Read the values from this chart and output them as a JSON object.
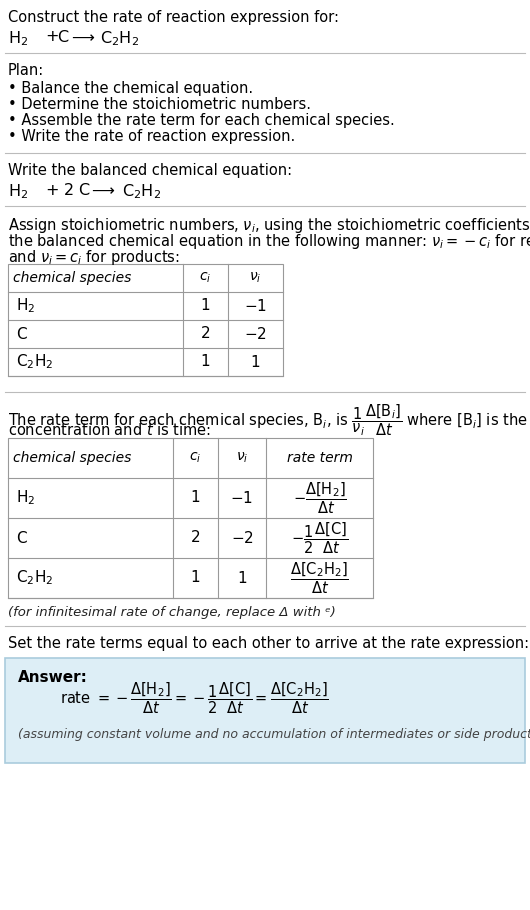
{
  "bg_color": "#ffffff",
  "text_color": "#000000",
  "answer_bg": "#ddeef6",
  "answer_border": "#aaccdd",
  "title_text": "Construct the rate of reaction expression for:",
  "plan_header": "Plan:",
  "plan_items": [
    "• Balance the chemical equation.",
    "• Determine the stoichiometric numbers.",
    "• Assemble the rate term for each chemical species.",
    "• Write the rate of reaction expression."
  ],
  "balanced_header": "Write the balanced chemical equation:",
  "assign_text1": "Assign stoichiometric numbers, $\\nu_i$, using the stoichiometric coefficients, $c_i$, from",
  "assign_text2": "the balanced chemical equation in the following manner: $\\nu_i = -c_i$ for reactants",
  "assign_text3": "and $\\nu_i = c_i$ for products:",
  "table1_headers": [
    "chemical species",
    "$c_i$",
    "$\\nu_i$"
  ],
  "table1_rows": [
    [
      "$\\mathrm{H_2}$",
      "1",
      "$-1$"
    ],
    [
      "$\\mathrm{C}$",
      "2",
      "$-2$"
    ],
    [
      "$\\mathrm{C_2H_2}$",
      "1",
      "1"
    ]
  ],
  "rate_text1": "The rate term for each chemical species, $\\mathrm{B}_i$, is $\\dfrac{1}{\\nu_i}\\dfrac{\\Delta[\\mathrm{B}_i]}{\\Delta t}$ where $[\\mathrm{B}_i]$ is the amount",
  "rate_text2": "concentration and $t$ is time:",
  "table2_headers": [
    "chemical species",
    "$c_i$",
    "$\\nu_i$",
    "rate term"
  ],
  "table2_rows": [
    [
      "$\\mathrm{H_2}$",
      "1",
      "$-1$",
      "$-\\dfrac{\\Delta[\\mathrm{H_2}]}{\\Delta t}$"
    ],
    [
      "$\\mathrm{C}$",
      "2",
      "$-2$",
      "$-\\dfrac{1}{2}\\dfrac{\\Delta[\\mathrm{C}]}{\\Delta t}$"
    ],
    [
      "$\\mathrm{C_2H_2}$",
      "1",
      "1",
      "$\\dfrac{\\Delta[\\mathrm{C_2H_2}]}{\\Delta t}$"
    ]
  ],
  "infinitesimal_note": "(for infinitesimal rate of change, replace Δ with 푑)",
  "set_rate_text": "Set the rate terms equal to each other to arrive at the rate expression:",
  "answer_label": "Answer:",
  "answer_note": "(assuming constant volume and no accumulation of intermediates or side products)"
}
